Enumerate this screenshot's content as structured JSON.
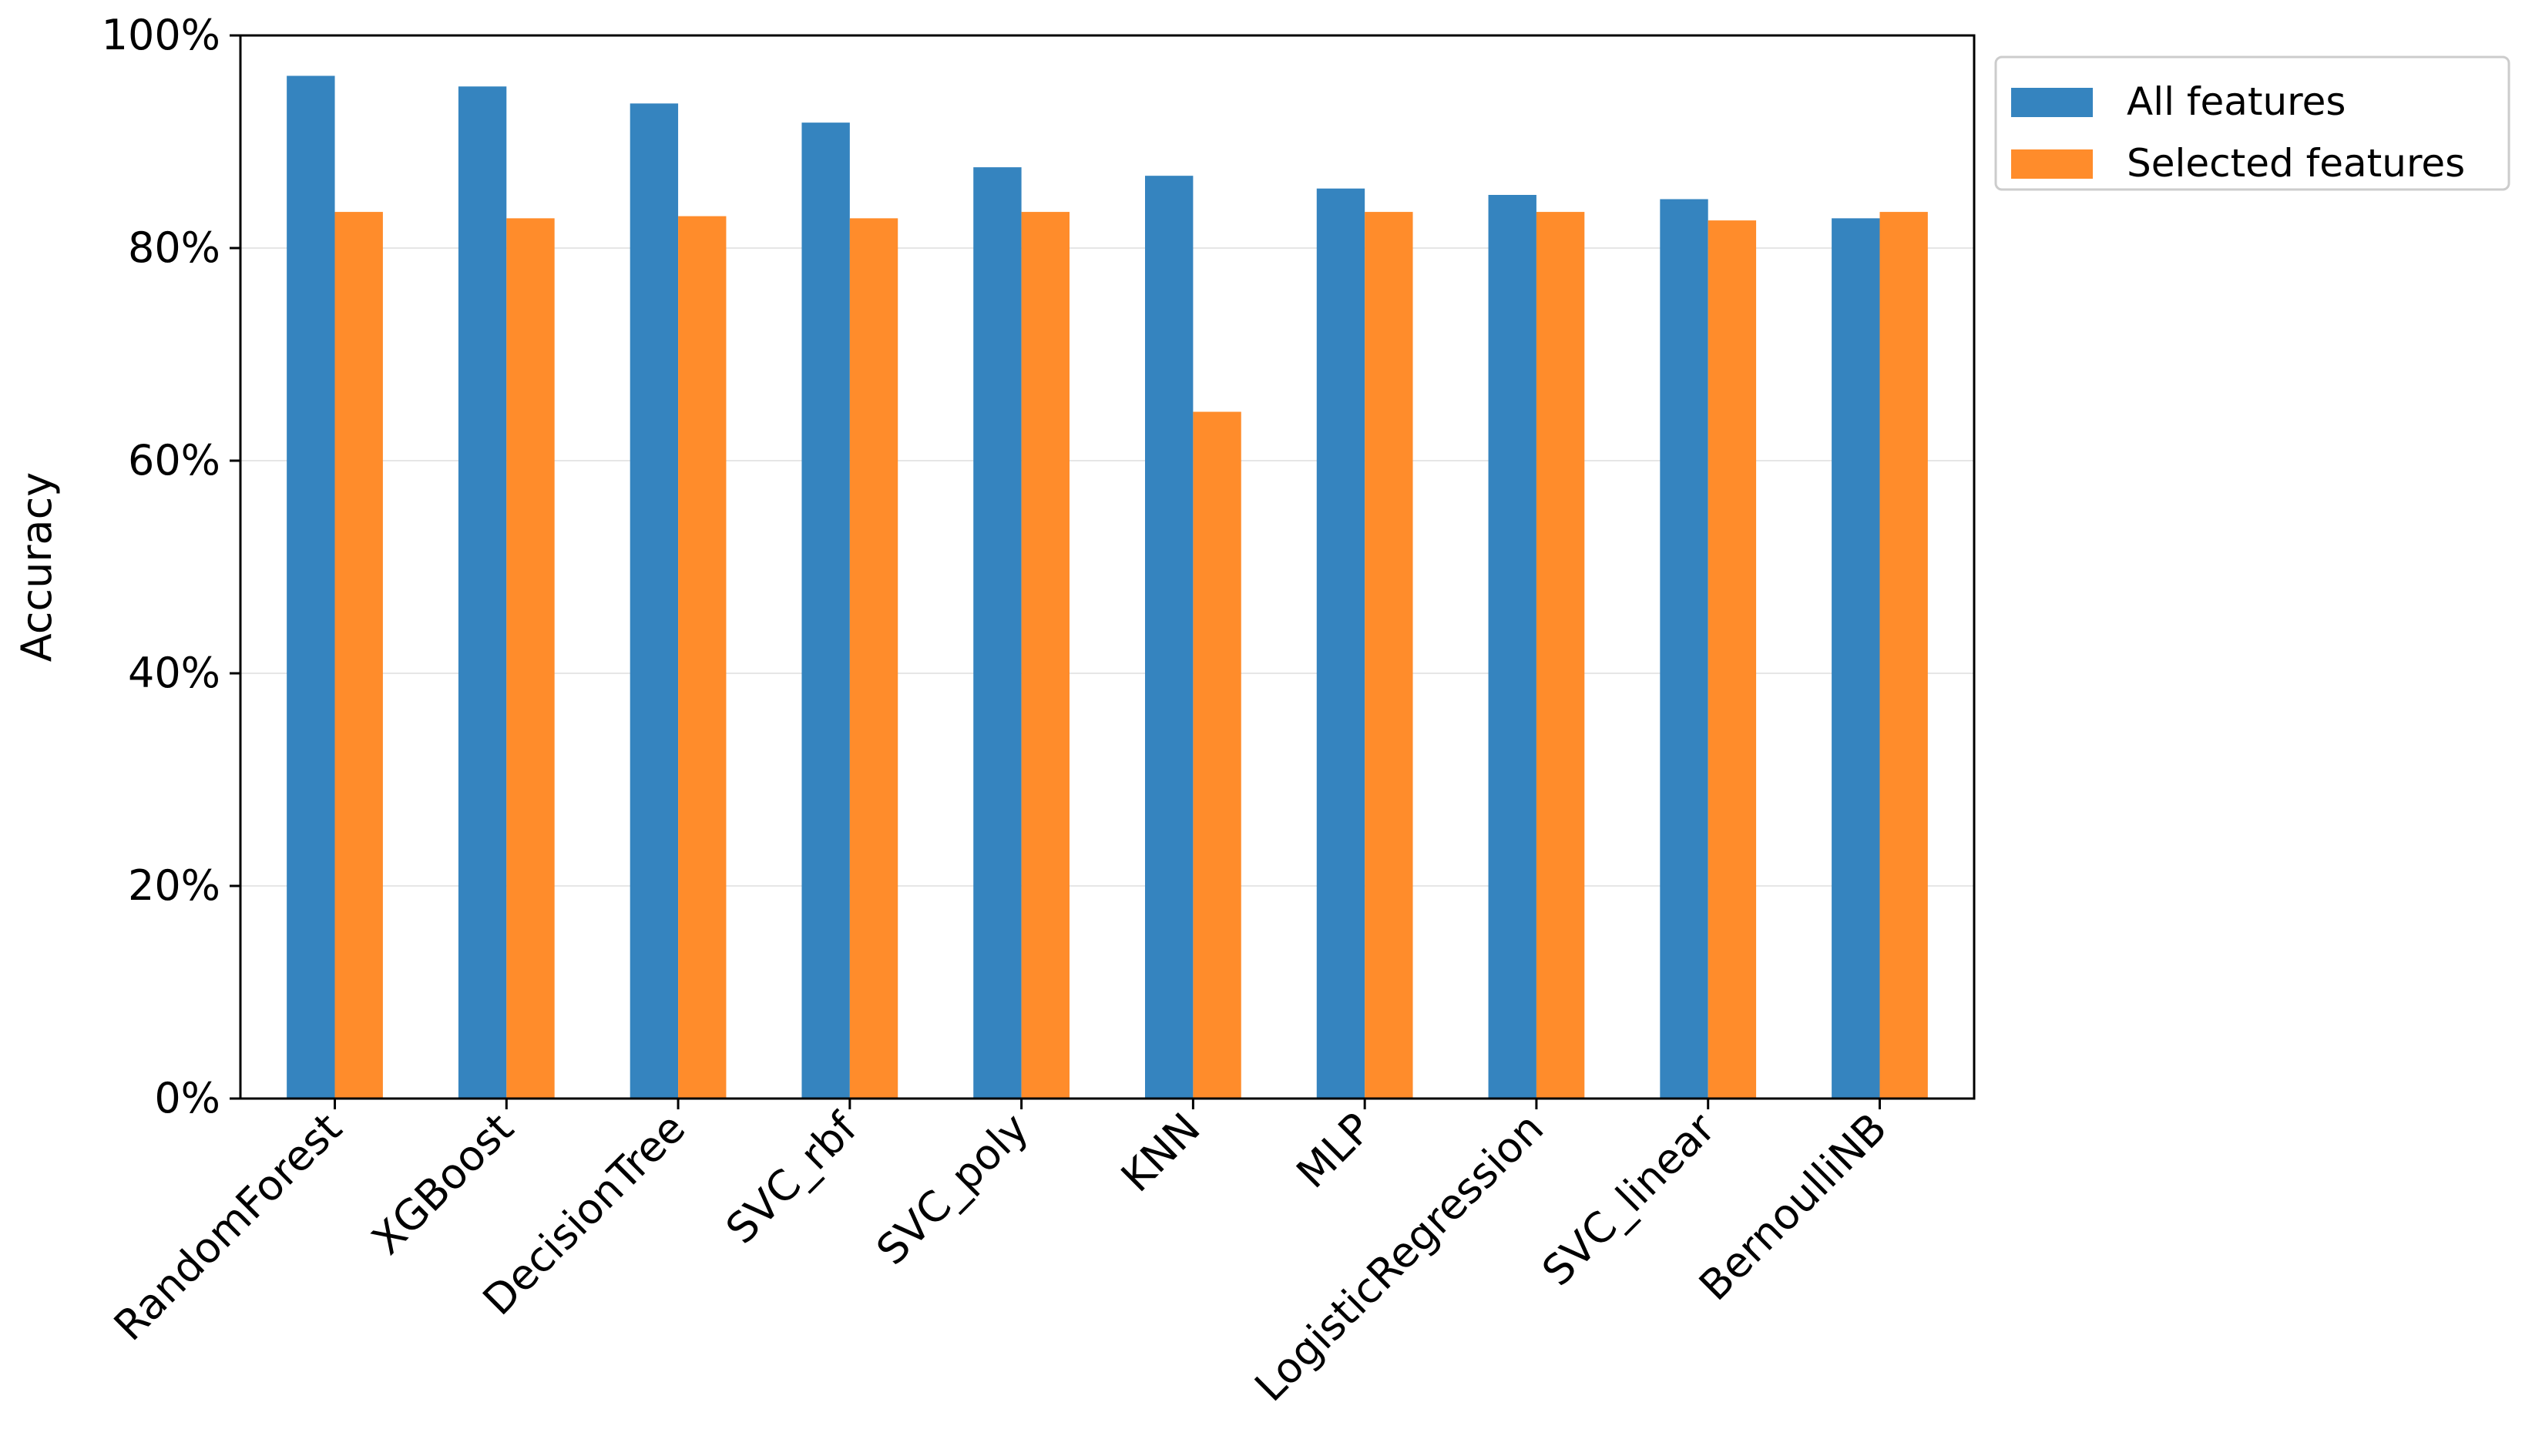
{
  "chart_data": {
    "type": "bar",
    "title": "",
    "xlabel": "",
    "ylabel": "Accuracy",
    "ylim": [
      0,
      1
    ],
    "yticks": [
      "0%",
      "20%",
      "40%",
      "60%",
      "80%",
      "100%"
    ],
    "grid": "horizontal",
    "legend_position": "top-right",
    "categories": [
      "RandomForest",
      "XGBoost",
      "DecisionTree",
      "SVC_rbf",
      "SVC_poly",
      "KNN",
      "MLP",
      "LogisticRegression",
      "SVC_linear",
      "BernoulliNB"
    ],
    "series": [
      {
        "name": "All features",
        "color": "#3584bf",
        "values": [
          0.962,
          0.952,
          0.936,
          0.918,
          0.876,
          0.868,
          0.856,
          0.85,
          0.846,
          0.828
        ]
      },
      {
        "name": "Selected features",
        "color": "#ff8c2b",
        "values": [
          0.834,
          0.828,
          0.83,
          0.828,
          0.834,
          0.646,
          0.834,
          0.834,
          0.826,
          0.834
        ]
      }
    ]
  }
}
